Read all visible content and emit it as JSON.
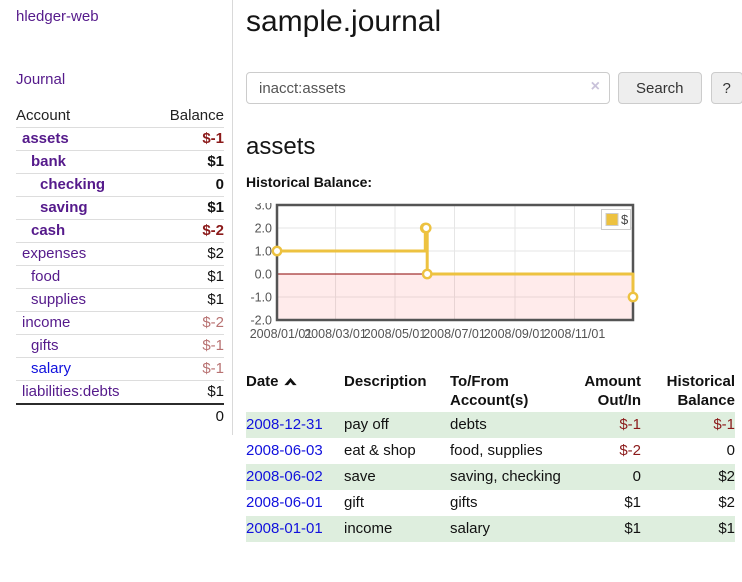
{
  "colors": {
    "accent_purple": "#551a8b",
    "link_blue": "#1111dd",
    "negative_strong": "#8b1a1a",
    "negative_soft": "#b87272",
    "row_green": "#deeede",
    "chart_line": "#edc240",
    "chart_zero_line": "#8b0000",
    "chart_negative_fill": "rgba(255,0,0,0.08)",
    "chart_grid": "#e6e6e6",
    "chart_border": "#545454"
  },
  "sidebar": {
    "brand": "hledger-web",
    "journal_link": "Journal",
    "accounts": {
      "header_account": "Account",
      "header_balance": "Balance",
      "rows": [
        {
          "name": "assets",
          "depth": 1,
          "balance": "$-1",
          "bold": true,
          "neg": "strong"
        },
        {
          "name": "bank",
          "depth": 2,
          "balance": "$1",
          "bold": true
        },
        {
          "name": "checking",
          "depth": 3,
          "balance": "0",
          "bold": true
        },
        {
          "name": "saving",
          "depth": 3,
          "balance": "$1",
          "bold": true
        },
        {
          "name": "cash",
          "depth": 2,
          "balance": "$-2",
          "bold": true,
          "neg": "strong"
        },
        {
          "name": "expenses",
          "depth": 1,
          "balance": "$2"
        },
        {
          "name": "food",
          "depth": 2,
          "balance": "$1"
        },
        {
          "name": "supplies",
          "depth": 2,
          "balance": "$1"
        },
        {
          "name": "income",
          "depth": 1,
          "balance": "$-2",
          "neg": "soft"
        },
        {
          "name": "gifts",
          "depth": 2,
          "balance": "$-1",
          "neg": "soft"
        },
        {
          "name": "salary",
          "depth": 2,
          "balance": "$-1",
          "neg": "soft",
          "blue": true
        },
        {
          "name": "liabilities:debts",
          "depth": 1,
          "balance": "$1"
        }
      ],
      "total": "0"
    }
  },
  "main": {
    "title": "sample.journal",
    "search": {
      "value": "inacct:assets",
      "clear_icon": "×",
      "button_label": "Search",
      "help_label": "?"
    },
    "account_heading": "assets",
    "chart_label": "Historical Balance:"
  },
  "chart_data": {
    "type": "line",
    "title": "Historical Balance",
    "step": true,
    "xrange": [
      "2008-01-01",
      "2008-12-31"
    ],
    "ylim": [
      -2,
      3
    ],
    "y_ticks": [
      "3.0",
      "2.0",
      "1.0",
      "0.0",
      "-1.0",
      "-2.0"
    ],
    "x_ticks": [
      "2008/01/01",
      "2008/03/01",
      "2008/05/01",
      "2008/07/01",
      "2008/09/01",
      "2008/11/01"
    ],
    "grid": true,
    "zero_line": true,
    "negative_region_shaded": true,
    "legend": {
      "label": "$",
      "position": "top-right"
    },
    "series": [
      {
        "name": "$",
        "color": "#edc240",
        "points": [
          {
            "date": "2008-01-01",
            "value": 1
          },
          {
            "date": "2008-06-01",
            "value": 2
          },
          {
            "date": "2008-06-02",
            "value": 2
          },
          {
            "date": "2008-06-03",
            "value": 0
          },
          {
            "date": "2008-12-31",
            "value": -1
          }
        ]
      }
    ]
  },
  "register": {
    "headers": {
      "date": "Date",
      "description": "Description",
      "accounts": "To/From Account(s)",
      "amount": "Amount Out/In",
      "balance": "Historical Balance"
    },
    "rows": [
      {
        "date": "2008-12-31",
        "description": "pay off",
        "accounts": "debts",
        "amount": "$-1",
        "balance": "$-1",
        "amount_neg": true,
        "balance_neg": true
      },
      {
        "date": "2008-06-03",
        "description": "eat & shop",
        "accounts": "food, supplies",
        "amount": "$-2",
        "balance": "0",
        "amount_neg": true,
        "balance_neg": false
      },
      {
        "date": "2008-06-02",
        "description": "save",
        "accounts": "saving, checking",
        "amount": "0",
        "balance": "$2",
        "amount_neg": false,
        "balance_neg": false
      },
      {
        "date": "2008-06-01",
        "description": "gift",
        "accounts": "gifts",
        "amount": "$1",
        "balance": "$2",
        "amount_neg": false,
        "balance_neg": false
      },
      {
        "date": "2008-01-01",
        "description": "income",
        "accounts": "salary",
        "amount": "$1",
        "balance": "$1",
        "amount_neg": false,
        "balance_neg": false
      }
    ]
  }
}
